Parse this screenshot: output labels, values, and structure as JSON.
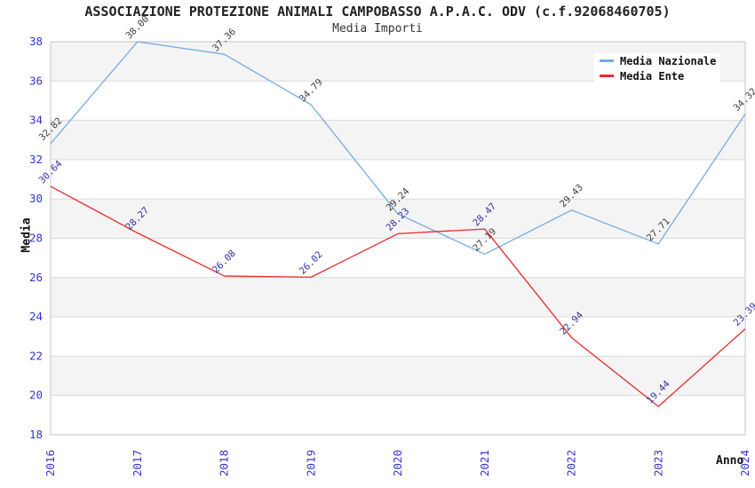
{
  "title": "ASSOCIAZIONE PROTEZIONE ANIMALI CAMPOBASSO A.P.A.C. ODV (c.f.92068460705)",
  "subtitle": "Media Importi",
  "chart_data": {
    "type": "line",
    "x": [
      "2016",
      "2017",
      "2018",
      "2019",
      "2020",
      "2021",
      "2022",
      "2023",
      "2024"
    ],
    "xlabel": "Anno",
    "ylabel": "Media",
    "ylim": [
      18,
      38
    ],
    "ytick_step": 2,
    "grid": "horizontal gridlines every 2 units with alternating gray/white bands",
    "legend_position": "top-right inside plot",
    "value_label_format": "2-decimals, rotated 45deg above each point",
    "axis_tick_color": "#3434cf",
    "band_color": "#f4f4f4",
    "gridline_color": "#d9d9d9",
    "plot_border_color": "#c5c5c5",
    "series": [
      {
        "name": "Media Nazionale",
        "color": "#76ace4",
        "label_color": "#3c3c3c",
        "values": [
          32.82,
          38.0,
          37.36,
          34.79,
          29.24,
          27.19,
          29.43,
          27.71,
          34.32
        ]
      },
      {
        "name": "Media Ente",
        "color": "#ea2a2a",
        "label_color": "#3131a3",
        "values": [
          30.64,
          28.27,
          26.08,
          26.02,
          28.23,
          28.47,
          22.94,
          19.44,
          23.39
        ]
      }
    ]
  }
}
